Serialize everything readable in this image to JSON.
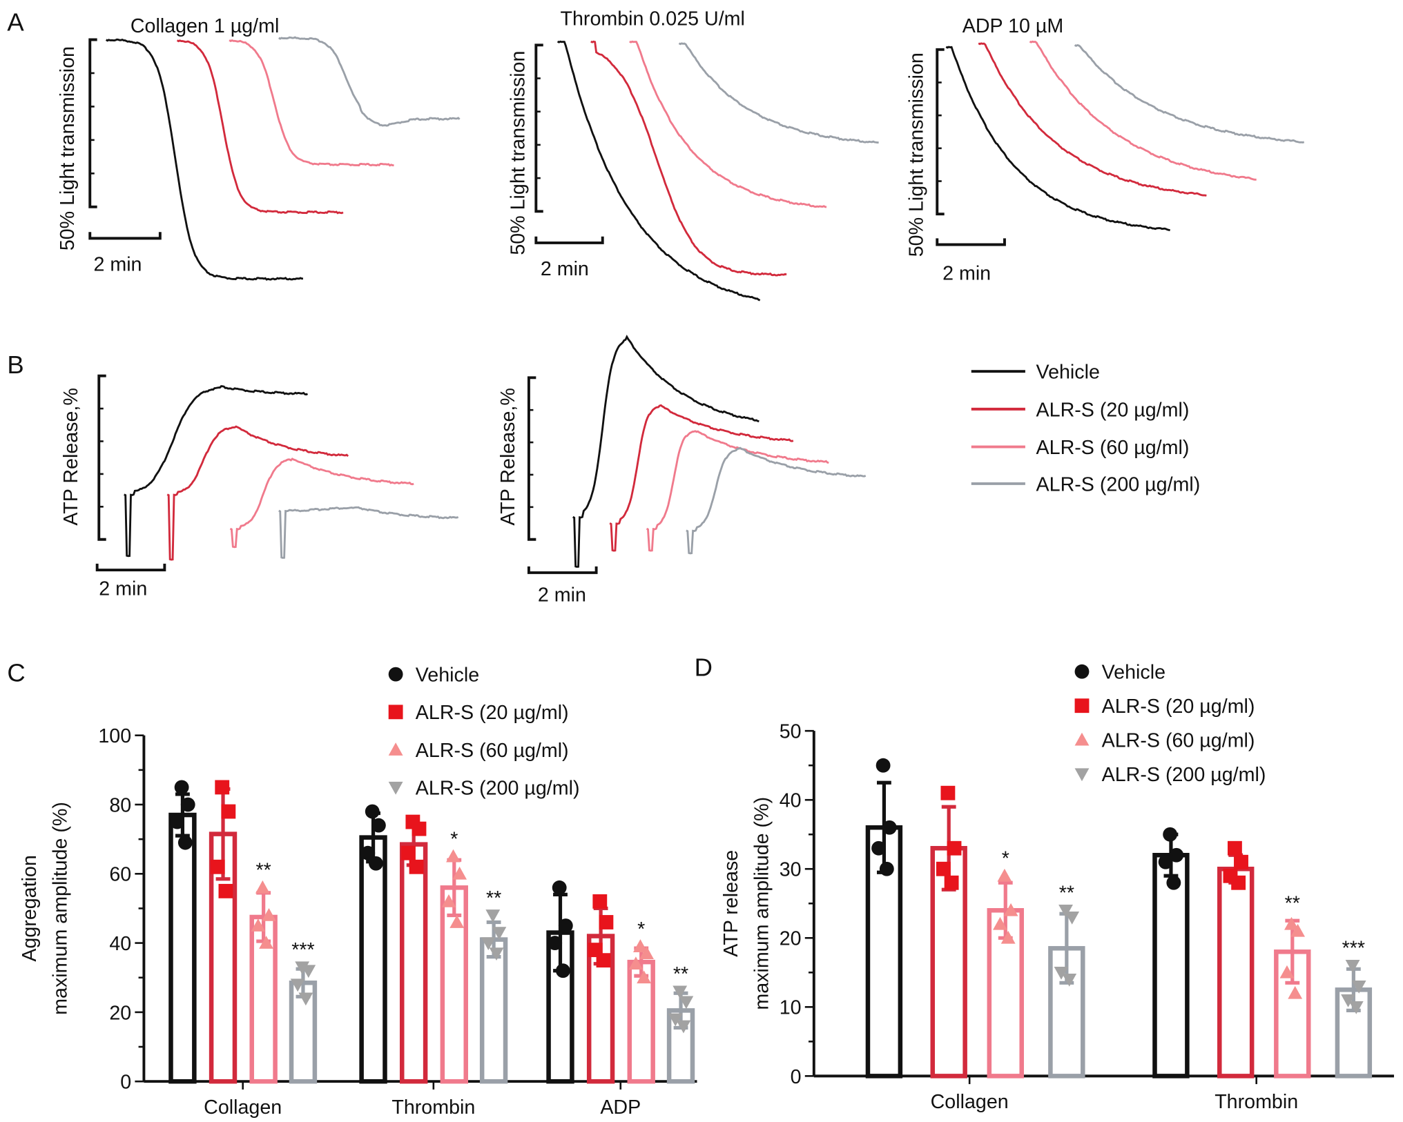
{
  "panel_labels": {
    "a": "A",
    "b": "B",
    "c": "C",
    "d": "D"
  },
  "legend": [
    "Vehicle",
    "ALR-S (20 µg/ml)",
    "ALR-S (60 µg/ml)",
    "ALR-S (200 µg/ml)"
  ],
  "colors": {
    "vehicle": "#111111",
    "alr20": "#d22a3c",
    "alr60": "#f07a8c",
    "alr200": "#9aa0a8",
    "marker20": "#e8141c",
    "marker60": "#f58e8e",
    "marker200": "#a2a2a2"
  },
  "chart_data": [
    {
      "panel": "A",
      "type": "line",
      "title": "Collagen 1 µg/ml",
      "ylabel": "50% Light transmission",
      "scalebar": "2 min"
    },
    {
      "panel": "A",
      "type": "line",
      "title": "Thrombin 0.025 U/ml",
      "ylabel": "50% Light transmission",
      "scalebar": "2 min"
    },
    {
      "panel": "A",
      "type": "line",
      "title": "ADP 10 µM",
      "ylabel": "50% Light transmission",
      "scalebar": "2 min"
    },
    {
      "panel": "B",
      "type": "line",
      "ylabel": "ATP Release,%",
      "scalebar": "2 min"
    },
    {
      "panel": "B",
      "type": "line",
      "ylabel": "ATP Release,%",
      "scalebar": "2 min"
    },
    {
      "panel": "C",
      "type": "bar",
      "ylabel": [
        "Aggregation",
        "maximum amplitude (%)"
      ],
      "ylim": [
        0,
        100
      ],
      "yticks": [
        0,
        20,
        40,
        60,
        80,
        100
      ],
      "categories": [
        "Collagen",
        "Thrombin",
        "ADP"
      ],
      "series": [
        {
          "name": "Vehicle",
          "marker": "circle",
          "values": [
            77,
            70.5,
            43
          ],
          "sd": [
            6,
            7,
            11
          ],
          "points": [
            [
              85,
              80,
              75,
              69
            ],
            [
              78,
              74,
              66,
              63
            ],
            [
              56,
              45,
              40,
              32
            ]
          ],
          "sig": [
            "",
            "",
            ""
          ]
        },
        {
          "name": "ALR-S (20 µg/ml)",
          "marker": "square",
          "values": [
            71.5,
            68.5,
            42
          ],
          "sd": [
            13,
            6,
            8
          ],
          "points": [
            [
              85,
              78,
              62,
              55
            ],
            [
              75,
              73,
              66,
              62
            ],
            [
              52,
              46,
              38,
              35
            ]
          ],
          "sig": [
            "",
            "",
            ""
          ]
        },
        {
          "name": "ALR-S (60 µg/ml)",
          "marker": "triangle-up",
          "values": [
            47.5,
            56,
            34.5
          ],
          "sd": [
            7,
            8,
            4
          ],
          "points": [
            [
              56,
              48,
              45,
              40
            ],
            [
              65,
              60,
              52,
              46
            ],
            [
              39,
              37,
              34,
              30
            ]
          ],
          "sig": [
            "**",
            "*",
            "*"
          ]
        },
        {
          "name": "ALR-S (200 µg/ml)",
          "marker": "triangle-down",
          "values": [
            28.5,
            41,
            20.5
          ],
          "sd": [
            4,
            5,
            5
          ],
          "points": [
            [
              33,
              32,
              28,
              24
            ],
            [
              48,
              43,
              40,
              37
            ],
            [
              26,
              23,
              18,
              16
            ]
          ],
          "sig": [
            "***",
            "**",
            "**"
          ]
        }
      ]
    },
    {
      "panel": "D",
      "type": "bar",
      "ylabel": [
        "ATP release",
        "maximum amplitude (%)"
      ],
      "ylim": [
        0,
        50
      ],
      "yticks": [
        0,
        10,
        20,
        30,
        40,
        50
      ],
      "categories": [
        "Collagen",
        "Thrombin"
      ],
      "series": [
        {
          "name": "Vehicle",
          "marker": "circle",
          "values": [
            36,
            32
          ],
          "sd": [
            6.5,
            3
          ],
          "points": [
            [
              45,
              36,
              33,
              30
            ],
            [
              35,
              32,
              31,
              28
            ]
          ],
          "sig": [
            "",
            ""
          ]
        },
        {
          "name": "ALR-S (20 µg/ml)",
          "marker": "square",
          "values": [
            33,
            30
          ],
          "sd": [
            6,
            2
          ],
          "points": [
            [
              41,
              33,
              30,
              28
            ],
            [
              33,
              31,
              29,
              28
            ]
          ],
          "sig": [
            "",
            ""
          ]
        },
        {
          "name": "ALR-S (60 µg/ml)",
          "marker": "triangle-up",
          "values": [
            24,
            18
          ],
          "sd": [
            4,
            4.5
          ],
          "points": [
            [
              29,
              24,
              22,
              20
            ],
            [
              22,
              21,
              15,
              12
            ]
          ],
          "sig": [
            "*",
            "**"
          ]
        },
        {
          "name": "ALR-S (200 µg/ml)",
          "marker": "triangle-down",
          "values": [
            18.5,
            12.5
          ],
          "sd": [
            5,
            3
          ],
          "points": [
            [
              24,
              23,
              15,
              14
            ],
            [
              16,
              13,
              11,
              10
            ]
          ],
          "sig": [
            "**",
            "***"
          ]
        }
      ]
    }
  ]
}
